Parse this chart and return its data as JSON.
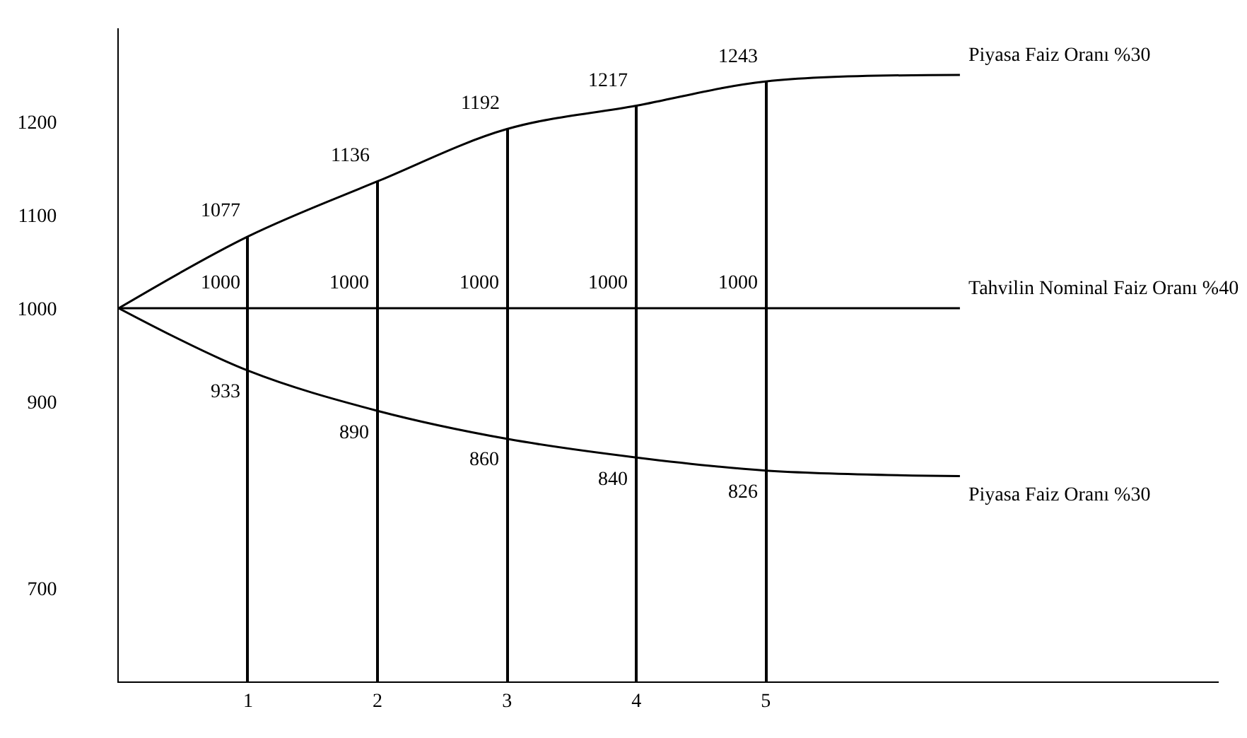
{
  "chart_data": {
    "type": "line",
    "xlim": [
      0,
      8.5
    ],
    "xticks": [
      1,
      2,
      3,
      4,
      5
    ],
    "ylim": [
      600,
      1300
    ],
    "yticks": [
      700,
      900,
      1000,
      1100,
      1200
    ],
    "legend": false,
    "marker": "none",
    "line_style": "solid",
    "series": [
      {
        "name": "Piyasa Faiz Oranı %30",
        "color": "#000000",
        "x": [
          0,
          1,
          2,
          3,
          4,
          5,
          6.5
        ],
        "values": [
          1000,
          1077,
          1136,
          1192,
          1217,
          1243,
          1250
        ],
        "value_labels": [
          null,
          "1077",
          "1136",
          "1192",
          "1217",
          "1243",
          null
        ]
      },
      {
        "name": "Tahvilin Nominal Faiz Oranı %40",
        "color": "#000000",
        "x": [
          0,
          1,
          2,
          3,
          4,
          5,
          6.5
        ],
        "values": [
          1000,
          1000,
          1000,
          1000,
          1000,
          1000,
          1000
        ],
        "value_labels": [
          null,
          "1000",
          "1000",
          "1000",
          "1000",
          "1000",
          null
        ]
      },
      {
        "name": "Piyasa Faiz Oranı %30",
        "color": "#000000",
        "x": [
          0,
          1,
          2,
          3,
          4,
          5,
          6.5
        ],
        "values": [
          1000,
          933,
          890,
          860,
          840,
          826,
          820
        ],
        "value_labels": [
          null,
          "933",
          "890",
          "860",
          "840",
          "826",
          null
        ]
      },
      {
        "type": "bar",
        "color": "#000000",
        "x": [
          1,
          2,
          3,
          4,
          5
        ],
        "values": [
          1077,
          1136,
          1192,
          1217,
          1243
        ]
      }
    ]
  }
}
